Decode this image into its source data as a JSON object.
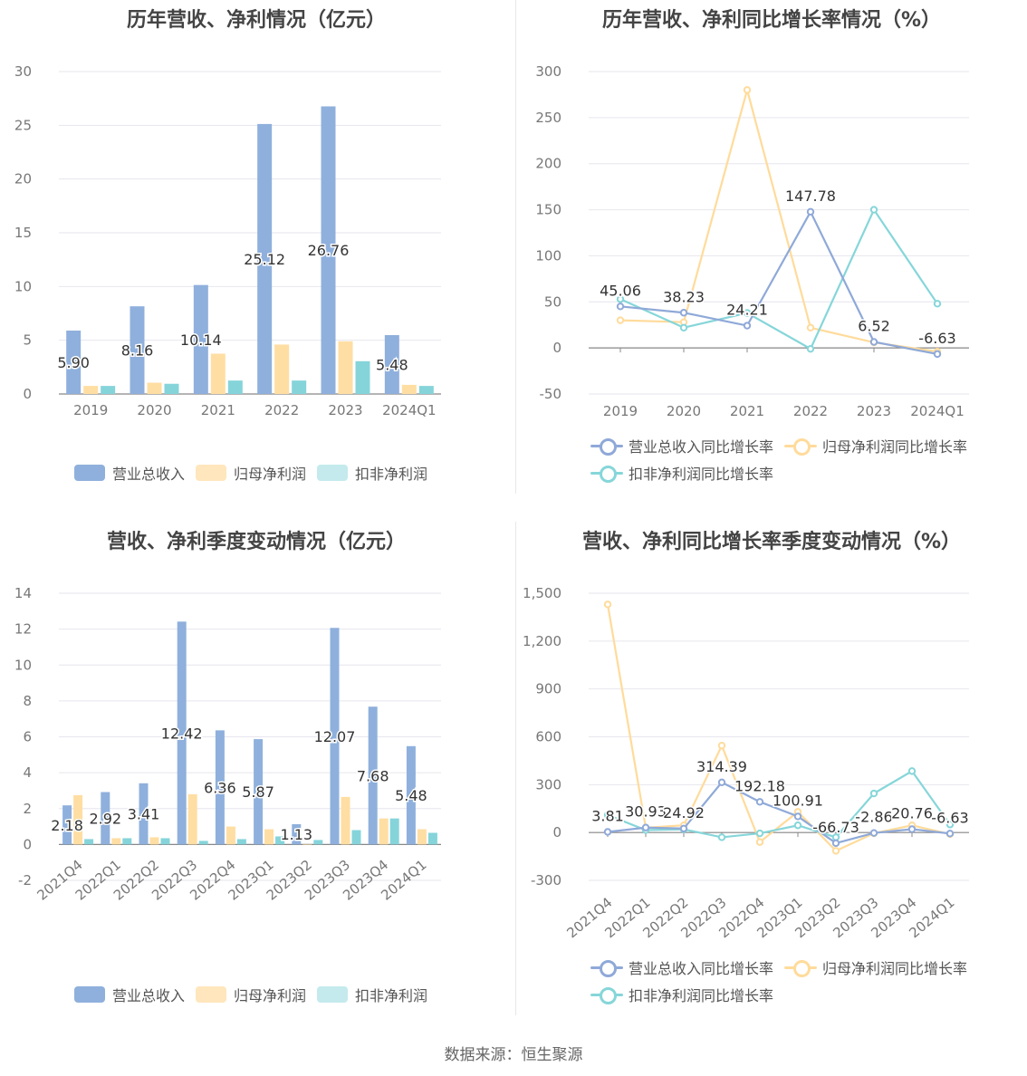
{
  "footer": "数据来源：恒生聚源",
  "colors": {
    "revenue": "#8fb0dc",
    "net_profit": "#ffdea3",
    "deducted_profit": "#85d4da",
    "revenue_line": "#8fa9d8",
    "net_line": "#ffdb9b",
    "deducted_line": "#86d6d9"
  },
  "legend_bar": {
    "revenue": "营业总收入",
    "net_profit": "归母净利润",
    "deducted_profit": "扣非净利润"
  },
  "legend_line": {
    "revenue": "营业总收入同比增长率",
    "net_profit": "归母净利润同比增长率",
    "deducted_profit": "扣非净利润同比增长率"
  },
  "chart_data": [
    {
      "type": "bar",
      "title": "历年营收、净利情况（亿元）",
      "categories": [
        "2019",
        "2020",
        "2021",
        "2022",
        "2023",
        "2024Q1"
      ],
      "ylim": [
        0,
        30
      ],
      "yticks": [
        0,
        5,
        10,
        15,
        20,
        25,
        30
      ],
      "series": [
        {
          "name": "营业总收入",
          "values": [
            5.9,
            8.16,
            10.14,
            25.12,
            26.76,
            5.48
          ],
          "labels": [
            "5.90",
            "8.16",
            "10.14",
            "25.12",
            "26.76",
            "5.48"
          ]
        },
        {
          "name": "归母净利润",
          "values": [
            0.75,
            1.05,
            3.75,
            4.6,
            4.9,
            0.85
          ]
        },
        {
          "name": "扣非净利润",
          "values": [
            0.75,
            0.95,
            1.25,
            1.25,
            3.05,
            0.75
          ]
        }
      ]
    },
    {
      "type": "line",
      "title": "历年营收、净利同比增长率情况（%）",
      "categories": [
        "2019",
        "2020",
        "2021",
        "2022",
        "2023",
        "2024Q1"
      ],
      "ylim": [
        -50,
        300
      ],
      "yticks": [
        -50,
        0,
        50,
        100,
        150,
        200,
        250,
        300
      ],
      "series": [
        {
          "name": "营业总收入同比增长率",
          "values": [
            45.06,
            38.23,
            24.21,
            147.78,
            6.52,
            -6.63
          ],
          "labels": [
            "45.06",
            "38.23",
            "24.21",
            "147.78",
            "6.52",
            "-6.63"
          ]
        },
        {
          "name": "归母净利润同比增长率",
          "values": [
            30,
            28,
            280,
            22,
            6,
            -4
          ]
        },
        {
          "name": "扣非净利润同比增长率",
          "values": [
            53,
            22,
            38,
            -1,
            150,
            48
          ]
        }
      ]
    },
    {
      "type": "bar",
      "title": "营收、净利季度变动情况（亿元）",
      "categories": [
        "2021Q4",
        "2022Q1",
        "2022Q2",
        "2022Q3",
        "2022Q4",
        "2023Q1",
        "2023Q2",
        "2023Q3",
        "2023Q4",
        "2024Q1"
      ],
      "ylim": [
        -2,
        14
      ],
      "yticks": [
        -2,
        0,
        2,
        4,
        6,
        8,
        10,
        12,
        14
      ],
      "series": [
        {
          "name": "营业总收入",
          "values": [
            2.18,
            2.92,
            3.41,
            12.42,
            6.36,
            5.87,
            1.13,
            12.07,
            7.68,
            5.48
          ],
          "labels": [
            "2.18",
            "2.92",
            "3.41",
            "12.42",
            "6.36",
            "5.87",
            "1.13",
            "12.07",
            "7.68",
            "5.48"
          ]
        },
        {
          "name": "归母净利润",
          "values": [
            2.75,
            0.35,
            0.4,
            2.8,
            1.0,
            0.85,
            0.0,
            2.65,
            1.45,
            0.85
          ]
        },
        {
          "name": "扣非净利润",
          "values": [
            0.3,
            0.35,
            0.35,
            0.2,
            0.3,
            0.45,
            0.25,
            0.8,
            1.45,
            0.65
          ]
        }
      ]
    },
    {
      "type": "line",
      "title": "营收、净利同比增长率季度变动情况（%）",
      "categories": [
        "2021Q4",
        "2022Q1",
        "2022Q2",
        "2022Q3",
        "2022Q4",
        "2023Q1",
        "2023Q2",
        "2023Q3",
        "2023Q4",
        "2024Q1"
      ],
      "ylim": [
        -300,
        1500
      ],
      "yticks": [
        -300,
        0,
        300,
        600,
        900,
        1200,
        1500
      ],
      "ytick_labels": [
        "-300",
        "0",
        "300",
        "600",
        "900",
        "1,200",
        "1,500"
      ],
      "series": [
        {
          "name": "营业总收入同比增长率",
          "values": [
            3.81,
            30.93,
            24.92,
            314.39,
            192.18,
            100.91,
            -66.73,
            -2.86,
            20.76,
            -6.63
          ],
          "labels": [
            "3.81",
            "30.93",
            "24.92",
            "314.39",
            "192.18",
            "100.91",
            "-66.73",
            "-2.86",
            "20.76",
            "-6.63"
          ]
        },
        {
          "name": "归母净利润同比增长率",
          "values": [
            1430,
            30,
            45,
            545,
            -60,
            130,
            -115,
            -5,
            45,
            -10
          ]
        },
        {
          "name": "扣非净利润同比增长率",
          "values": [
            110,
            15,
            20,
            -30,
            -5,
            45,
            -30,
            245,
            385,
            50
          ]
        }
      ]
    }
  ]
}
